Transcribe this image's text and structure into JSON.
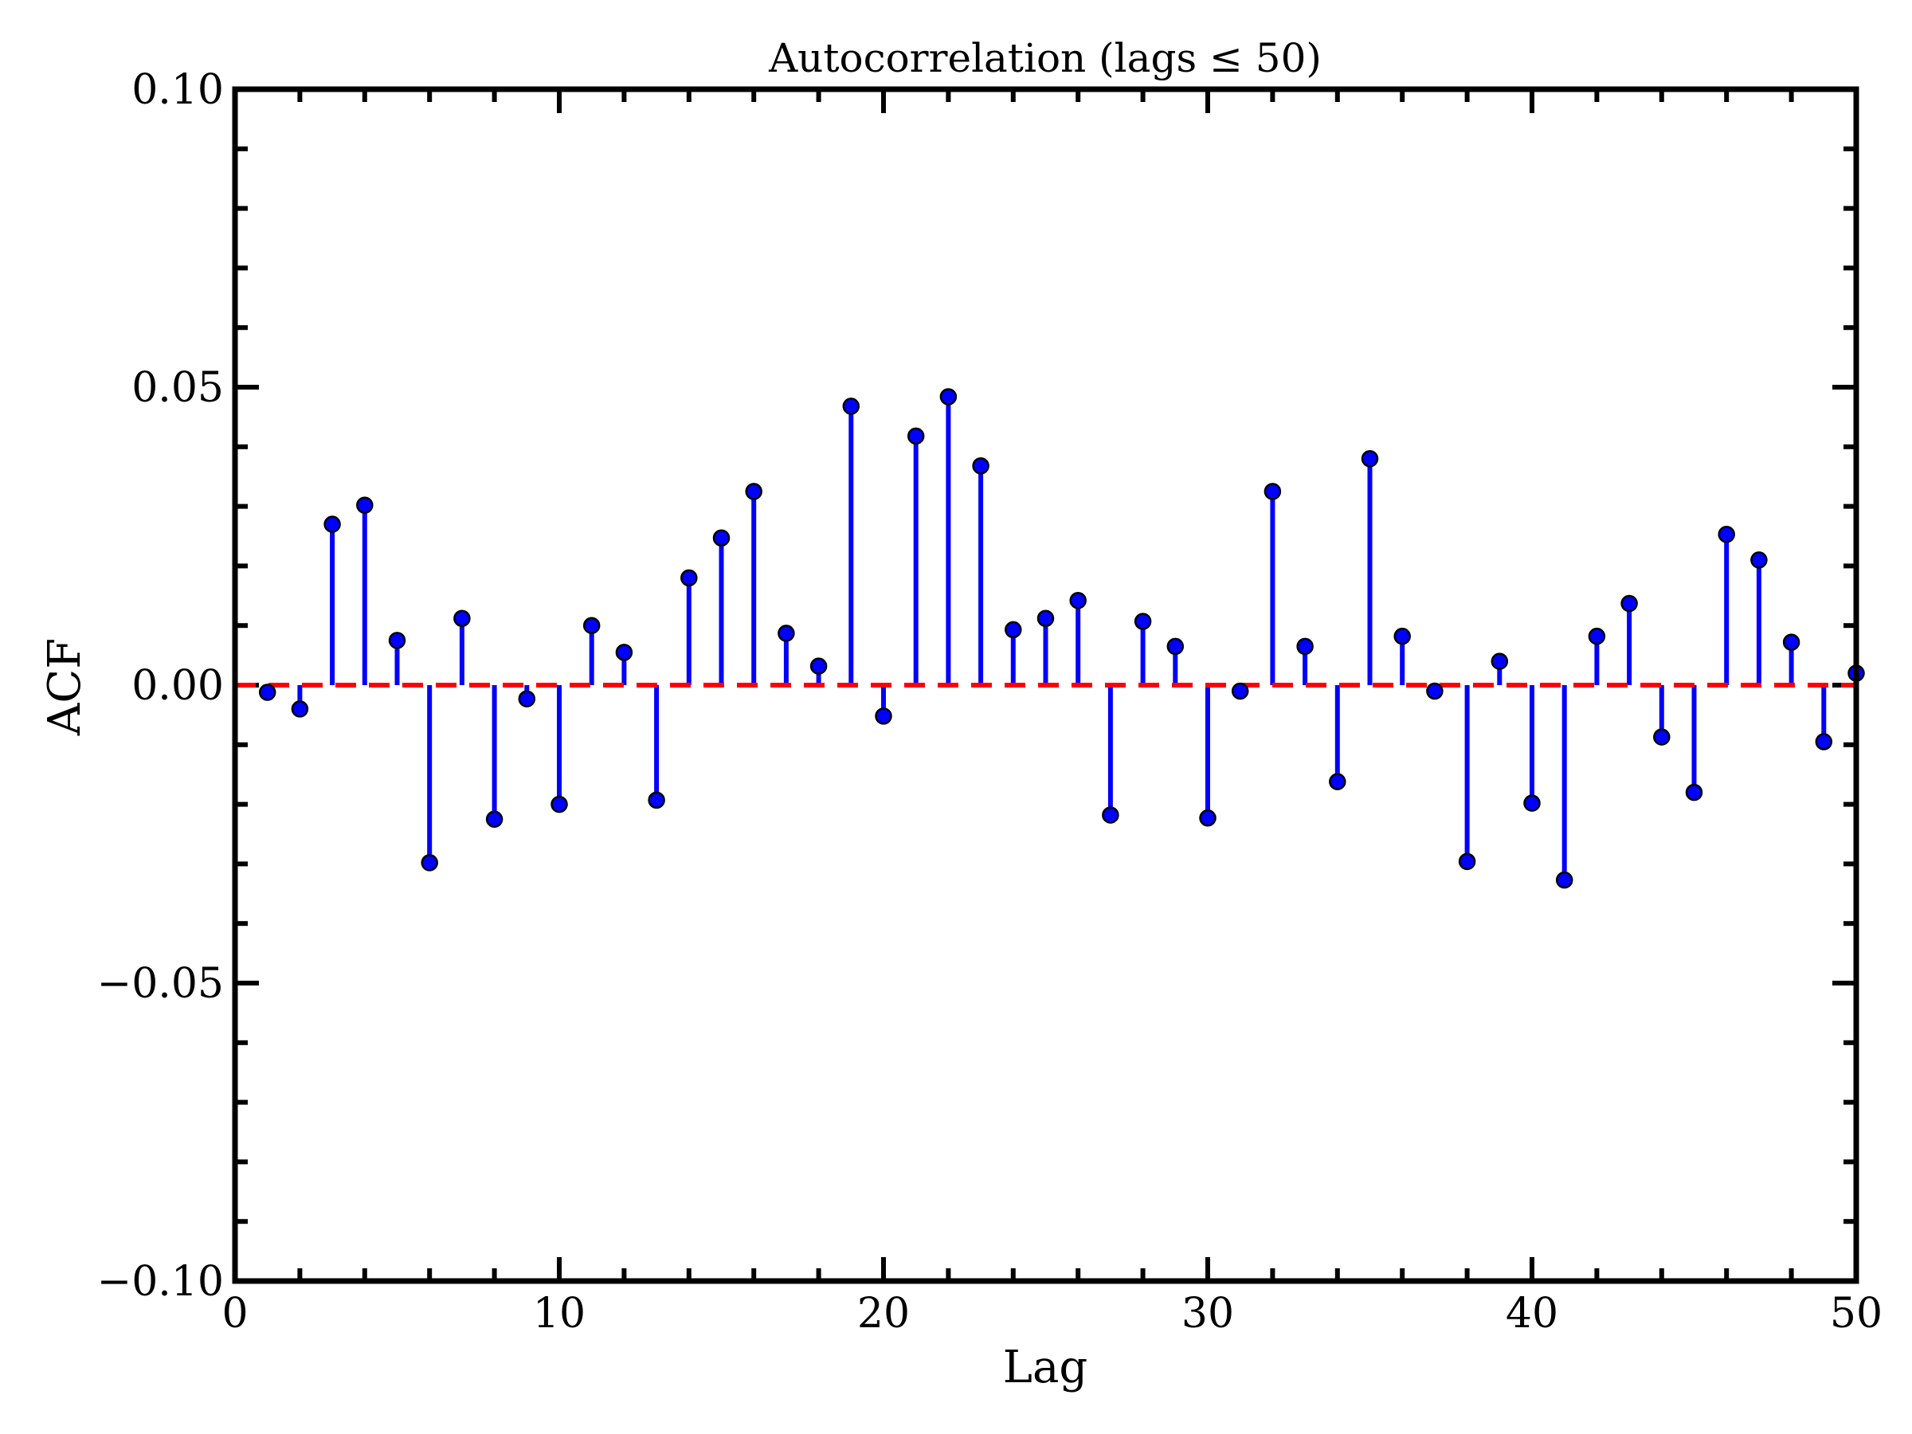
{
  "chart_data": {
    "type": "stem",
    "title": "Autocorrelation (lags ≤ 50)",
    "xlabel": "Lag",
    "ylabel": "ACF",
    "xlim": [
      0,
      50
    ],
    "ylim": [
      -0.1,
      0.1
    ],
    "x_ticks": [
      0,
      10,
      20,
      30,
      40,
      50
    ],
    "x_tick_labels": [
      "0",
      "10",
      "20",
      "30",
      "40",
      "50"
    ],
    "y_ticks": [
      -0.1,
      -0.05,
      0.0,
      0.05,
      0.1
    ],
    "y_tick_labels": [
      "−0.10",
      "−0.05",
      "0.00",
      "0.05",
      "0.10"
    ],
    "x_minor_step": 2,
    "y_minor_step": 0.01,
    "grid": false,
    "baseline": 0.0,
    "colors": {
      "stem": "#0000ff",
      "marker": "#0000ff",
      "marker_edge": "#000000",
      "baseline": "#ff0000"
    },
    "series": [
      {
        "lags": [
          1,
          2,
          3,
          4,
          5,
          6,
          7,
          8,
          9,
          10,
          11,
          12,
          13,
          14,
          15,
          16,
          17,
          18,
          19,
          20,
          21,
          22,
          23,
          24,
          25,
          26,
          27,
          28,
          29,
          30,
          31,
          32,
          33,
          34,
          35,
          36,
          37,
          38,
          39,
          40,
          41,
          42,
          43,
          44,
          45,
          46,
          47,
          48,
          49,
          50
        ],
        "values": [
          -0.0012,
          -0.004,
          0.027,
          0.0302,
          0.0075,
          -0.0298,
          0.0112,
          -0.0225,
          -0.0023,
          -0.02,
          0.01,
          0.0055,
          -0.0193,
          0.018,
          0.0247,
          0.0325,
          0.0087,
          0.0032,
          0.0468,
          -0.0052,
          0.0418,
          0.0484,
          0.0368,
          0.0093,
          0.0112,
          0.0142,
          -0.0218,
          0.0107,
          0.0065,
          -0.0223,
          -0.001,
          0.0325,
          0.0065,
          -0.0162,
          0.038,
          0.0082,
          -0.001,
          -0.0296,
          0.004,
          -0.0198,
          -0.0327,
          0.0082,
          0.0137,
          -0.0087,
          -0.018,
          0.0253,
          0.021,
          0.0072,
          -0.0095,
          0.002
        ]
      }
    ]
  }
}
